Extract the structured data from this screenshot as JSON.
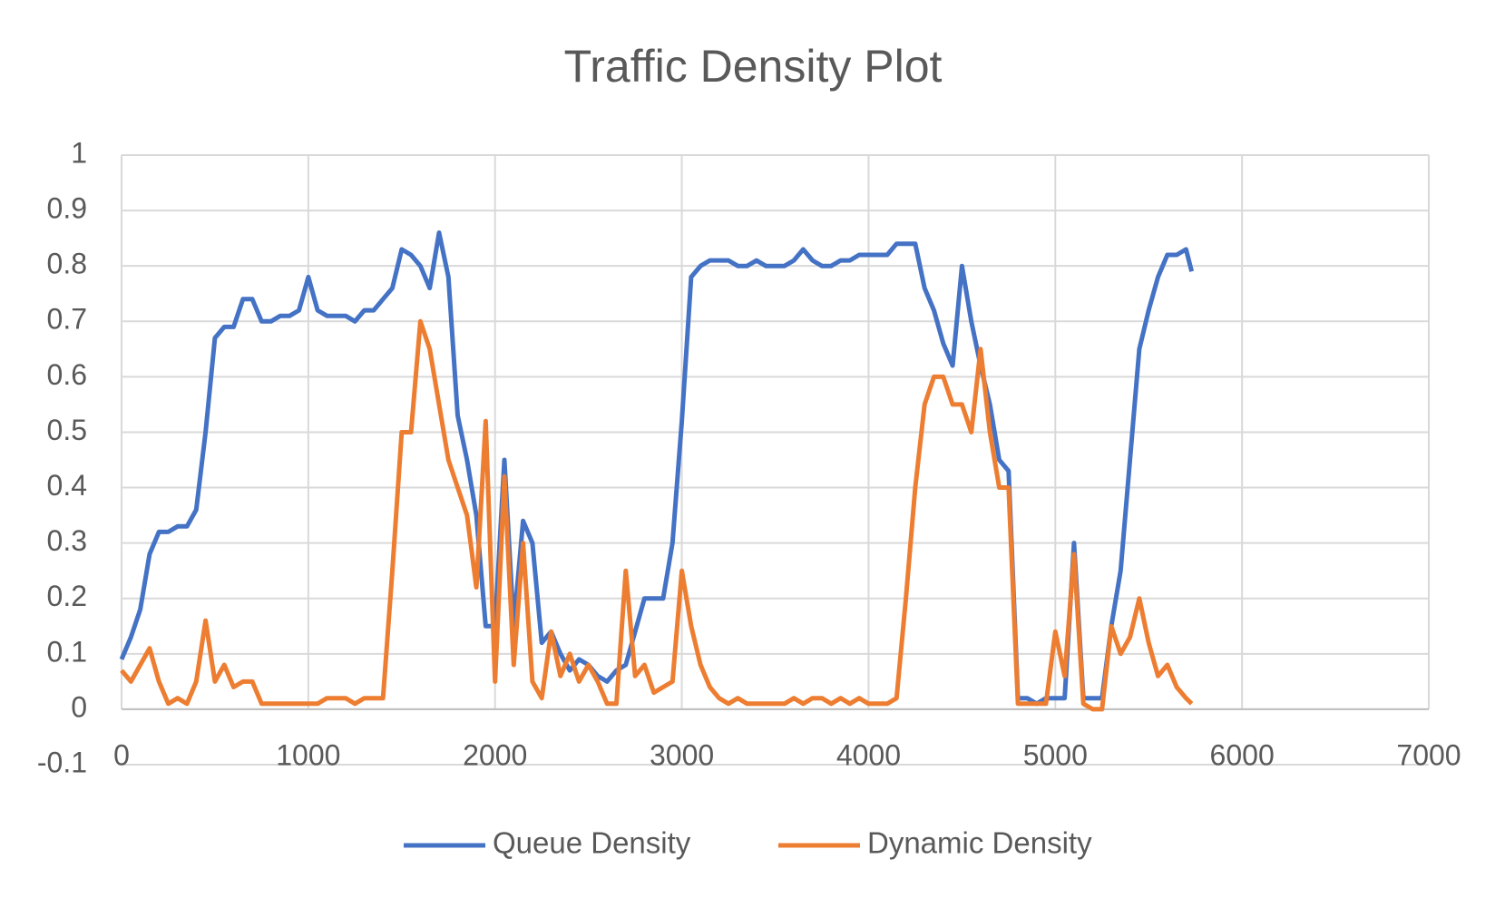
{
  "chart_data": {
    "type": "line",
    "title": "Traffic Density Plot",
    "x": [
      0,
      50,
      100,
      150,
      200,
      250,
      300,
      350,
      400,
      450,
      500,
      550,
      600,
      650,
      700,
      750,
      800,
      850,
      900,
      950,
      1000,
      1050,
      1100,
      1150,
      1200,
      1250,
      1300,
      1350,
      1400,
      1450,
      1500,
      1550,
      1600,
      1650,
      1700,
      1750,
      1800,
      1850,
      1900,
      1950,
      2000,
      2050,
      2100,
      2150,
      2200,
      2250,
      2300,
      2350,
      2400,
      2450,
      2500,
      2550,
      2600,
      2650,
      2700,
      2750,
      2800,
      2850,
      2900,
      2950,
      3000,
      3050,
      3100,
      3150,
      3200,
      3250,
      3300,
      3350,
      3400,
      3450,
      3500,
      3550,
      3600,
      3650,
      3700,
      3750,
      3800,
      3850,
      3900,
      3950,
      4000,
      4050,
      4100,
      4150,
      4200,
      4250,
      4300,
      4350,
      4400,
      4450,
      4500,
      4550,
      4600,
      4650,
      4700,
      4750,
      4800,
      4850,
      4900,
      4950,
      5000,
      5050,
      5100,
      5150,
      5200,
      5250,
      5300,
      5350,
      5400,
      5450,
      5500,
      5550,
      5600,
      5650,
      5700,
      5730
    ],
    "series": [
      {
        "name": "Queue Density",
        "color": "#4472c4",
        "values": [
          0.09,
          0.13,
          0.18,
          0.28,
          0.32,
          0.32,
          0.33,
          0.33,
          0.36,
          0.5,
          0.67,
          0.69,
          0.69,
          0.74,
          0.74,
          0.7,
          0.7,
          0.71,
          0.71,
          0.72,
          0.78,
          0.72,
          0.71,
          0.71,
          0.71,
          0.7,
          0.72,
          0.72,
          0.74,
          0.76,
          0.83,
          0.82,
          0.8,
          0.76,
          0.86,
          0.78,
          0.53,
          0.45,
          0.35,
          0.15,
          0.15,
          0.45,
          0.15,
          0.34,
          0.3,
          0.12,
          0.14,
          0.1,
          0.07,
          0.09,
          0.08,
          0.06,
          0.05,
          0.07,
          0.08,
          0.14,
          0.2,
          0.2,
          0.2,
          0.3,
          0.52,
          0.78,
          0.8,
          0.81,
          0.81,
          0.81,
          0.8,
          0.8,
          0.81,
          0.8,
          0.8,
          0.8,
          0.81,
          0.83,
          0.81,
          0.8,
          0.8,
          0.81,
          0.81,
          0.82,
          0.82,
          0.82,
          0.82,
          0.84,
          0.84,
          0.84,
          0.76,
          0.72,
          0.66,
          0.62,
          0.8,
          0.7,
          0.62,
          0.55,
          0.45,
          0.43,
          0.02,
          0.02,
          0.01,
          0.02,
          0.02,
          0.02,
          0.3,
          0.02,
          0.02,
          0.02,
          0.15,
          0.25,
          0.45,
          0.65,
          0.72,
          0.78,
          0.82,
          0.82,
          0.83,
          0.79
        ]
      },
      {
        "name": "Dynamic Density",
        "color": "#ed7d31",
        "values": [
          0.07,
          0.05,
          0.08,
          0.11,
          0.05,
          0.01,
          0.02,
          0.01,
          0.05,
          0.16,
          0.05,
          0.08,
          0.04,
          0.05,
          0.05,
          0.01,
          0.01,
          0.01,
          0.01,
          0.01,
          0.01,
          0.01,
          0.02,
          0.02,
          0.02,
          0.01,
          0.02,
          0.02,
          0.02,
          0.25,
          0.5,
          0.5,
          0.7,
          0.65,
          0.55,
          0.45,
          0.4,
          0.35,
          0.22,
          0.52,
          0.05,
          0.42,
          0.08,
          0.3,
          0.05,
          0.02,
          0.14,
          0.06,
          0.1,
          0.05,
          0.08,
          0.05,
          0.01,
          0.01,
          0.25,
          0.06,
          0.08,
          0.03,
          0.04,
          0.05,
          0.25,
          0.15,
          0.08,
          0.04,
          0.02,
          0.01,
          0.02,
          0.01,
          0.01,
          0.01,
          0.01,
          0.01,
          0.02,
          0.01,
          0.02,
          0.02,
          0.01,
          0.02,
          0.01,
          0.02,
          0.01,
          0.01,
          0.01,
          0.02,
          0.2,
          0.4,
          0.55,
          0.6,
          0.6,
          0.55,
          0.55,
          0.5,
          0.65,
          0.5,
          0.4,
          0.4,
          0.01,
          0.01,
          0.01,
          0.01,
          0.14,
          0.06,
          0.28,
          0.01,
          0,
          0,
          0.15,
          0.1,
          0.13,
          0.2,
          0.12,
          0.06,
          0.08,
          0.04,
          0.02,
          0.01
        ]
      }
    ],
    "xlim": [
      0,
      7000
    ],
    "xticks": [
      0,
      1000,
      2000,
      3000,
      4000,
      5000,
      6000,
      7000
    ],
    "ylim": [
      -0.1,
      1
    ],
    "yticks": [
      -0.1,
      0,
      0.1,
      0.2,
      0.3,
      0.4,
      0.5,
      0.6,
      0.7,
      0.8,
      0.9,
      1
    ],
    "grid": true,
    "legend": "bottom"
  }
}
